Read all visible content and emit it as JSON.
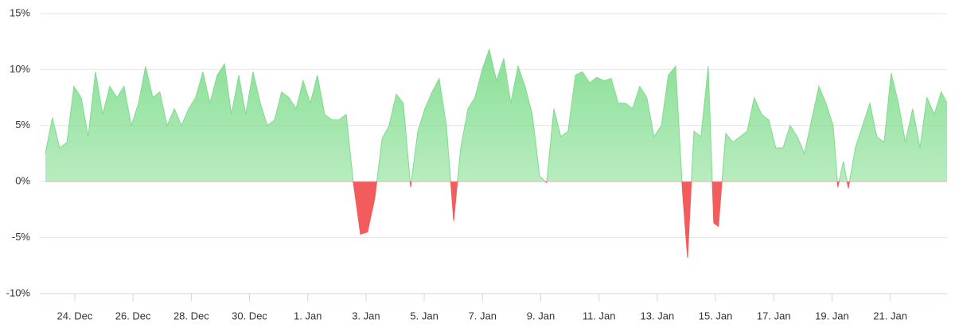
{
  "chart_data": {
    "type": "area",
    "x": [
      -1.01,
      -0.77,
      -0.52,
      -0.27,
      -0.03,
      0.22,
      0.46,
      0.71,
      0.96,
      1.2,
      1.45,
      1.69,
      1.94,
      2.19,
      2.43,
      2.68,
      2.92,
      3.17,
      3.42,
      3.66,
      3.91,
      4.15,
      4.4,
      4.64,
      4.89,
      5.14,
      5.38,
      5.63,
      5.87,
      6.12,
      6.37,
      6.61,
      6.86,
      7.1,
      7.35,
      7.6,
      7.84,
      8.09,
      8.33,
      8.58,
      8.83,
      9.07,
      9.32,
      9.56,
      9.81,
      10.05,
      10.3,
      10.55,
      10.79,
      11.04,
      11.28,
      11.53,
      11.78,
      12.02,
      12.27,
      12.51,
      12.76,
      13.01,
      13.25,
      13.5,
      13.74,
      13.99,
      14.23,
      14.48,
      14.73,
      14.97,
      15.22,
      15.46,
      15.71,
      15.96,
      16.2,
      16.45,
      16.69,
      16.94,
      17.19,
      17.43,
      17.68,
      17.92,
      18.17,
      18.42,
      18.66,
      18.91,
      19.15,
      19.4,
      19.64,
      19.89,
      20.14,
      20.38,
      20.63,
      20.87,
      21.04,
      21.26,
      21.5,
      21.75,
      21.94,
      22.1,
      22.35,
      22.6,
      22.84,
      23.09,
      23.33,
      23.58,
      23.83,
      24.07,
      24.32,
      24.56,
      24.81,
      25.05,
      25.3,
      25.55,
      25.79,
      26.04,
      26.2,
      26.39,
      26.56,
      26.8,
      27.05,
      27.3,
      27.54,
      27.79,
      28.03,
      28.28,
      28.52,
      28.77,
      29.02,
      29.26,
      29.51,
      29.75,
      29.95
    ],
    "values": [
      2.5,
      5.7,
      3,
      3.5,
      8.5,
      7.5,
      4,
      9.8,
      6,
      8.5,
      7.5,
      8.5,
      5,
      7,
      10.3,
      7.5,
      8,
      5,
      6.5,
      5,
      6.5,
      7.5,
      9.8,
      7,
      9.5,
      10.5,
      6,
      9.5,
      6,
      9.8,
      7,
      5,
      5.5,
      8,
      7.5,
      6.5,
      9,
      7,
      9.5,
      6,
      5.5,
      5.5,
      6,
      0,
      -4.7,
      -4.5,
      -1.5,
      3.8,
      5,
      7.8,
      7,
      -0.5,
      4.5,
      6.5,
      8,
      9.2,
      5,
      -3.5,
      3,
      6.5,
      7.5,
      10,
      11.8,
      9,
      11,
      7,
      10.3,
      8.5,
      6,
      0.5,
      -0.1,
      6.5,
      4,
      4.5,
      9.5,
      9.8,
      8.8,
      9.3,
      9,
      9.2,
      7,
      7,
      6.5,
      8.5,
      7.5,
      4,
      5,
      9.5,
      10.3,
      -1,
      -6.8,
      4.5,
      4,
      10.3,
      -3.7,
      -4,
      4.3,
      3.5,
      4,
      4.5,
      7.5,
      6,
      5.5,
      3,
      3,
      5,
      4,
      2.5,
      5.5,
      8.5,
      7,
      5,
      -0.5,
      1.8,
      -0.6,
      3,
      5,
      7,
      4,
      3.5,
      9.7,
      7,
      3.5,
      6.5,
      3,
      7.5,
      6,
      8,
      7
    ],
    "xlim": [
      -1.01,
      29.95
    ],
    "xticks": [
      {
        "value": 0,
        "label": "24. Dec"
      },
      {
        "value": 2,
        "label": "26. Dec"
      },
      {
        "value": 4,
        "label": "28. Dec"
      },
      {
        "value": 6,
        "label": "30. Dec"
      },
      {
        "value": 8,
        "label": "1. Jan"
      },
      {
        "value": 10,
        "label": "3. Jan"
      },
      {
        "value": 12,
        "label": "5. Jan"
      },
      {
        "value": 14,
        "label": "7. Jan"
      },
      {
        "value": 16,
        "label": "9. Jan"
      },
      {
        "value": 18,
        "label": "11. Jan"
      },
      {
        "value": 20,
        "label": "13. Jan"
      },
      {
        "value": 22,
        "label": "15. Jan"
      },
      {
        "value": 24,
        "label": "17. Jan"
      },
      {
        "value": 26,
        "label": "19. Jan"
      },
      {
        "value": 28,
        "label": "21. Jan"
      }
    ],
    "ylim": [
      -10,
      15
    ],
    "yticks": [
      {
        "value": -10,
        "label": "-10%"
      },
      {
        "value": -5,
        "label": "-5%"
      },
      {
        "value": 0,
        "label": "0%"
      },
      {
        "value": 5,
        "label": "5%"
      },
      {
        "value": 10,
        "label": "10%"
      },
      {
        "value": 15,
        "label": "15%"
      }
    ],
    "grid": true,
    "color": "#7ddc8b",
    "negative_color": "#f25c5c"
  }
}
